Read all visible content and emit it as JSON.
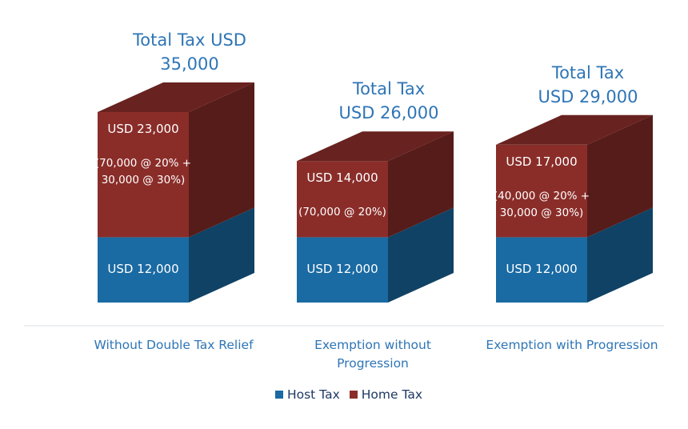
{
  "chart_data": {
    "type": "bar",
    "stacked": true,
    "three_d": true,
    "categories": [
      "Without Double Tax Relief",
      "Exemption without Progression",
      "Exemption with Progression"
    ],
    "series": [
      {
        "name": "Host Tax",
        "color": "#1a6aa3",
        "values": [
          12000,
          12000,
          12000
        ],
        "value_labels": [
          "USD 12,000",
          "USD 12,000",
          "USD 12,000"
        ]
      },
      {
        "name": "Home Tax",
        "color": "#8a2d29",
        "values": [
          23000,
          14000,
          17000
        ],
        "value_labels": [
          "USD 23,000",
          "USD 14,000",
          "USD 17,000"
        ],
        "notes": [
          "(70,000 @ 20% + 30,000 @ 30%)",
          "(70,000 @ 20%)",
          "(40,000 @ 20% + 30,000 @ 30%)"
        ]
      }
    ],
    "total_labels": [
      "Total Tax USD 35,000",
      "Total Tax USD 26,000",
      "Total Tax USD 29,000"
    ],
    "legend": "bottom"
  }
}
